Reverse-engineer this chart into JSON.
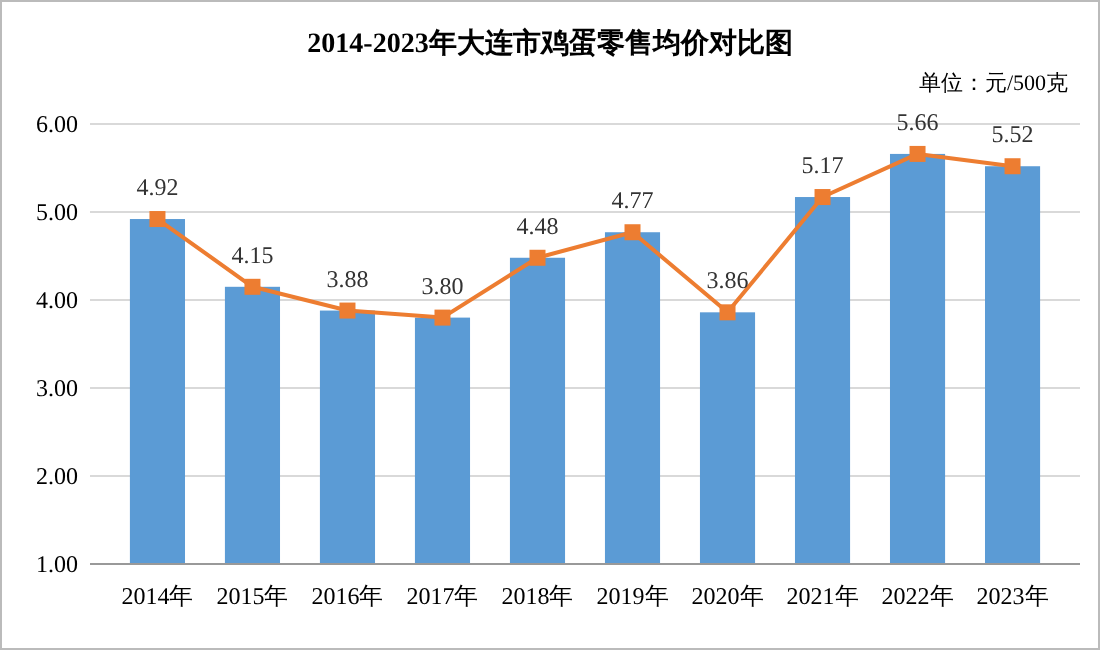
{
  "chart_data": {
    "type": "bar",
    "title": "2014-2023年大连市鸡蛋零售均价对比图",
    "annotations": [
      "单位：元/500克"
    ],
    "categories": [
      "2014年",
      "2015年",
      "2016年",
      "2017年",
      "2018年",
      "2019年",
      "2020年",
      "2021年",
      "2022年",
      "2023年"
    ],
    "series": [
      {
        "color": "#5b9bd5",
        "values": [
          4.92,
          4.15,
          3.88,
          3.8,
          4.48,
          4.77,
          3.86,
          5.17,
          5.66,
          5.52
        ]
      },
      {
        "type": "line",
        "color": "#ed7d31",
        "marker": "square",
        "line_style": "solid",
        "values": [
          4.92,
          4.15,
          3.88,
          3.8,
          4.48,
          4.77,
          3.86,
          5.17,
          5.66,
          5.52
        ],
        "value_labels": [
          "4.92",
          "4.15",
          "3.88",
          "3.80",
          "4.48",
          "4.77",
          "3.86",
          "5.17",
          "5.66",
          "5.52"
        ]
      }
    ],
    "ylim": [
      1,
      6
    ],
    "yticks": [
      {
        "value": 1,
        "label": "1.00"
      },
      {
        "value": 2,
        "label": "2.00"
      },
      {
        "value": 3,
        "label": "3.00"
      },
      {
        "value": 4,
        "label": "4.00"
      },
      {
        "value": 5,
        "label": "5.00"
      },
      {
        "value": 6,
        "label": "6.00"
      }
    ],
    "grid": "y"
  }
}
